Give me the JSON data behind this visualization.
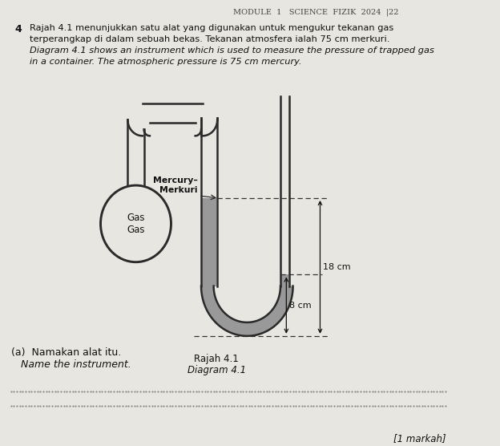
{
  "background_color": "#e8e6e0",
  "header_text": "MODULE  1   SCIENCE  FIZIK  2024  |22",
  "question_number": "4",
  "malay_text_line1": "Rajah 4.1 menunjukkan satu alat yang digunakan untuk mengukur tekanan gas",
  "malay_text_line2": "terperangkap di dalam sebuah bekas. Tekanan atmosfera ialah 75 cm merkuri.",
  "english_text_line1": "Diagram 4.1 shows an instrument which is used to measure the pressure of trapped gas",
  "english_text_line2": "in a container. The atmospheric pressure is 75 cm mercury.",
  "label_mercury": "Mercury–\nMerkuri",
  "label_gas": "Gas\nGas",
  "label_18cm": "18 cm",
  "label_8cm": "8 cm",
  "caption_malay": "Rajah 4.1",
  "caption_english": "Diagram 4.1",
  "part_a_malay": "(a)  Namakan alat itu.",
  "part_a_english": "Name the instrument.",
  "marks_text": "[1 markah]"
}
